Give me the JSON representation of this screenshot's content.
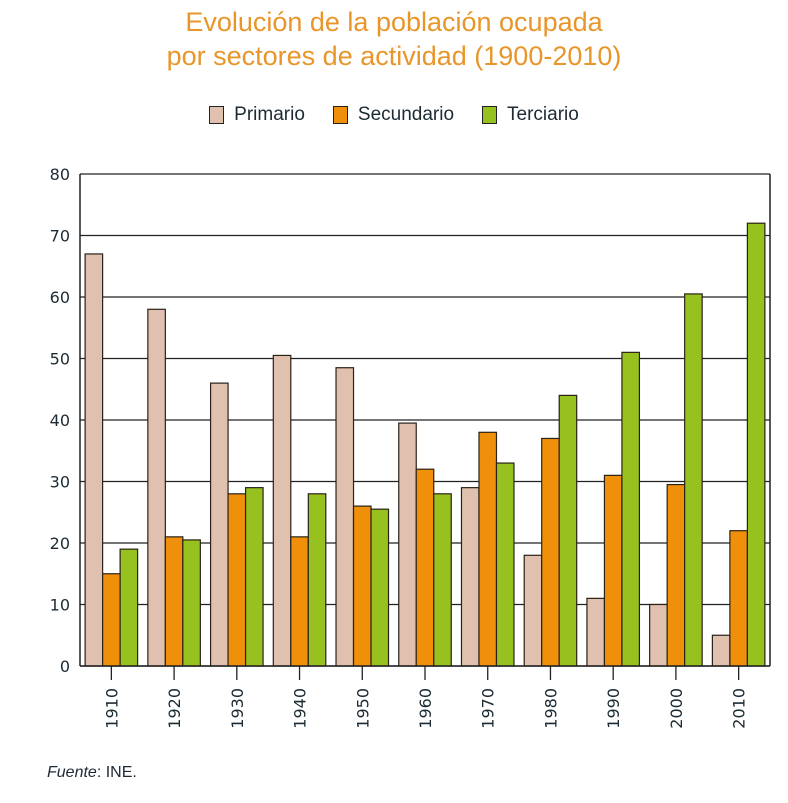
{
  "chart_data": {
    "type": "bar",
    "title": [
      "Evolución de la población ocupada",
      "por sectores de actividad (1900-2010)"
    ],
    "xlabel": "",
    "ylabel": "",
    "categories": [
      "1910",
      "1920",
      "1930",
      "1940",
      "1950",
      "1960",
      "1970",
      "1980",
      "1990",
      "2000",
      "2010"
    ],
    "series": [
      {
        "name": "Primario",
        "color": "#e0c0ae",
        "values": [
          67,
          58,
          46,
          50.5,
          48.5,
          39.5,
          29,
          18,
          11,
          10,
          5
        ]
      },
      {
        "name": "Secundario",
        "color": "#f0900a",
        "values": [
          15,
          21,
          28,
          21,
          26,
          32,
          38,
          37,
          31,
          29.5,
          22
        ]
      },
      {
        "name": "Terciario",
        "color": "#97c11f",
        "values": [
          19,
          20.5,
          29,
          28,
          25.5,
          28,
          33,
          44,
          51,
          60.5,
          72
        ]
      }
    ],
    "ylim": [
      0,
      80
    ],
    "yticks": [
      "0",
      "10",
      "20",
      "30",
      "40",
      "50",
      "60",
      "70",
      "80"
    ],
    "grid": true,
    "legend_position": "top-center",
    "source": {
      "label": "Fuente",
      "text": ": INE."
    }
  }
}
